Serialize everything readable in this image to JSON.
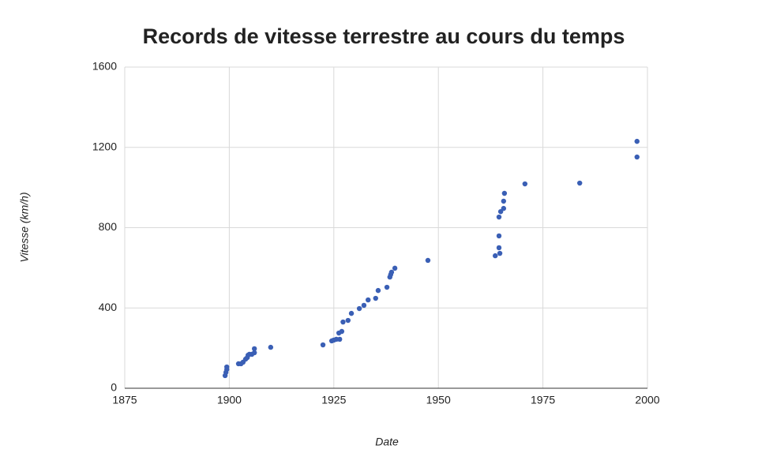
{
  "chart_data": {
    "type": "scatter",
    "title": "Records de vitesse terrestre au cours du temps",
    "xlabel": "Date",
    "ylabel": "Vitesse (km/h)",
    "color": "#3a5fb5",
    "grid": true,
    "xlim": [
      1875,
      2000
    ],
    "xticks": [
      1875,
      1900,
      1925,
      1950,
      1975,
      2000
    ],
    "ylim": [
      0,
      1600
    ],
    "yticks": [
      0,
      400,
      800,
      1200,
      1600
    ],
    "x": [
      1899.0,
      1899.2,
      1899.4,
      1899.4,
      1902.2,
      1902.8,
      1903.3,
      1903.9,
      1904.3,
      1904.5,
      1904.8,
      1905.4,
      1906.0,
      1906.0,
      1909.9,
      1922.4,
      1924.5,
      1925.0,
      1925.6,
      1926.4,
      1926.2,
      1926.9,
      1927.2,
      1928.4,
      1929.2,
      1931.1,
      1932.2,
      1933.2,
      1935.0,
      1935.6,
      1937.7,
      1938.4,
      1938.6,
      1938.8,
      1939.6,
      1947.5,
      1963.6,
      1964.7,
      1964.5,
      1964.5,
      1964.5,
      1964.9,
      1965.6,
      1965.6,
      1965.8,
      1970.7,
      1983.8,
      1997.5,
      1997.5
    ],
    "values": [
      63,
      79,
      94,
      106,
      122,
      122,
      130,
      145,
      153,
      165,
      169,
      169,
      177,
      197,
      204,
      216,
      236,
      240,
      244,
      244,
      275,
      283,
      330,
      338,
      373,
      397,
      413,
      440,
      448,
      487,
      503,
      554,
      566,
      578,
      598,
      637,
      660,
      672,
      700,
      759,
      853,
      880,
      896,
      932,
      971,
      1018,
      1022,
      1152,
      1230
    ]
  }
}
